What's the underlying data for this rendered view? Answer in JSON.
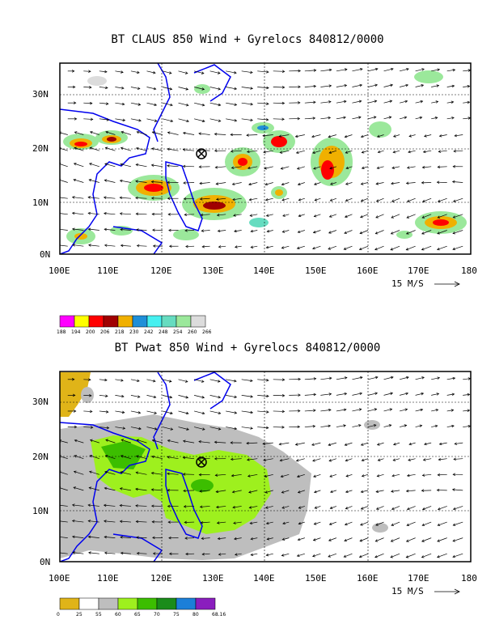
{
  "panels": [
    {
      "title": "BT CLAUS 850 Wind + Gyrelocs 840812/0000",
      "lat_labels": [
        "30N",
        "20N",
        "10N",
        "0N"
      ],
      "lon_labels": [
        "100E",
        "110E",
        "120E",
        "130E",
        "140E",
        "150E",
        "160E",
        "170E",
        "180"
      ],
      "wind_scale_label": "15 M/S",
      "storm_marker": {
        "lon": 128,
        "lat": 19
      },
      "legend": {
        "labels": [
          "188",
          "194",
          "200",
          "206",
          "218",
          "230",
          "242",
          "248",
          "254",
          "260",
          "266"
        ],
        "colors": [
          "#ff00ff",
          "#ffff00",
          "#ff0000",
          "#a00000",
          "#f0b000",
          "#1f8fd8",
          "#46f0f0",
          "#66dcc0",
          "#9be89b",
          "#dcdcdc"
        ]
      }
    },
    {
      "title": "BT Pwat 850 Wind + Gyrelocs 840812/0000",
      "lat_labels": [
        "30N",
        "20N",
        "10N",
        "0N"
      ],
      "lon_labels": [
        "100E",
        "110E",
        "120E",
        "130E",
        "140E",
        "150E",
        "160E",
        "170E",
        "180"
      ],
      "wind_scale_label": "15 M/S",
      "storm_marker": {
        "lon": 128,
        "lat": 19
      },
      "legend": {
        "labels": [
          "0",
          "25",
          "55",
          "60",
          "65",
          "70",
          "75",
          "80",
          "68.16"
        ],
        "colors": [
          "#e0b418",
          "#ffffff",
          "#bebebe",
          "#9ef01e",
          "#3cbe00",
          "#1a8c1a",
          "#1c7fd8",
          "#8a1ebe"
        ]
      }
    }
  ]
}
